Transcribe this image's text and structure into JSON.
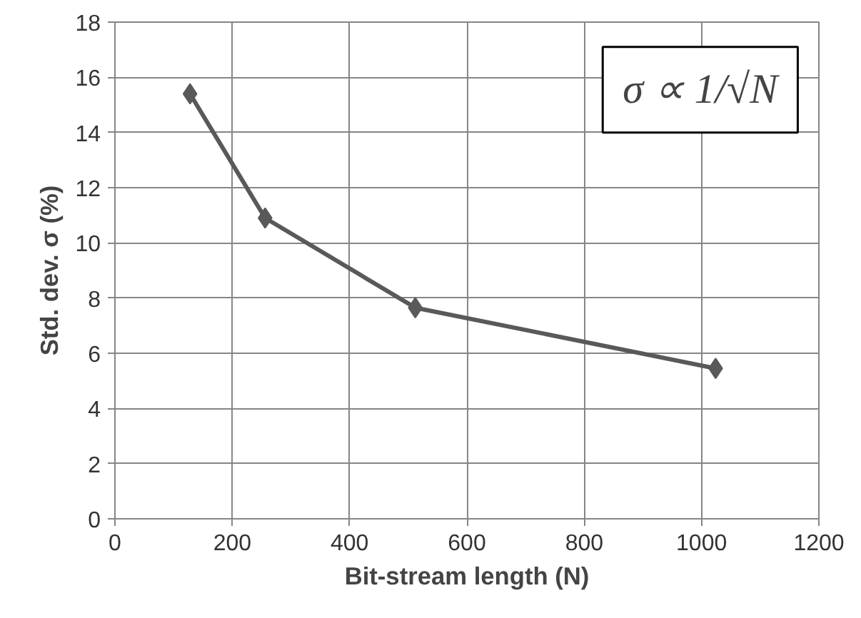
{
  "chart_data": {
    "type": "line",
    "xlabel": "Bit-stream length (N)",
    "ylabel": "Std. dev. σ (%)",
    "x": [
      128,
      256,
      512,
      1024
    ],
    "series": [
      {
        "color": "#595959",
        "values": [
          15.4,
          10.9,
          7.65,
          5.45
        ]
      }
    ],
    "xlim": [
      0,
      1200
    ],
    "xticks": [
      0,
      200,
      400,
      600,
      800,
      1000,
      1200
    ],
    "ylim": [
      0,
      18
    ],
    "yticks": [
      0,
      2,
      4,
      6,
      8,
      10,
      12,
      14,
      16,
      18
    ],
    "grid": true,
    "marker": "diamond",
    "line_style": "solid",
    "annotations": [
      "σ ∝ 1/√N"
    ]
  }
}
